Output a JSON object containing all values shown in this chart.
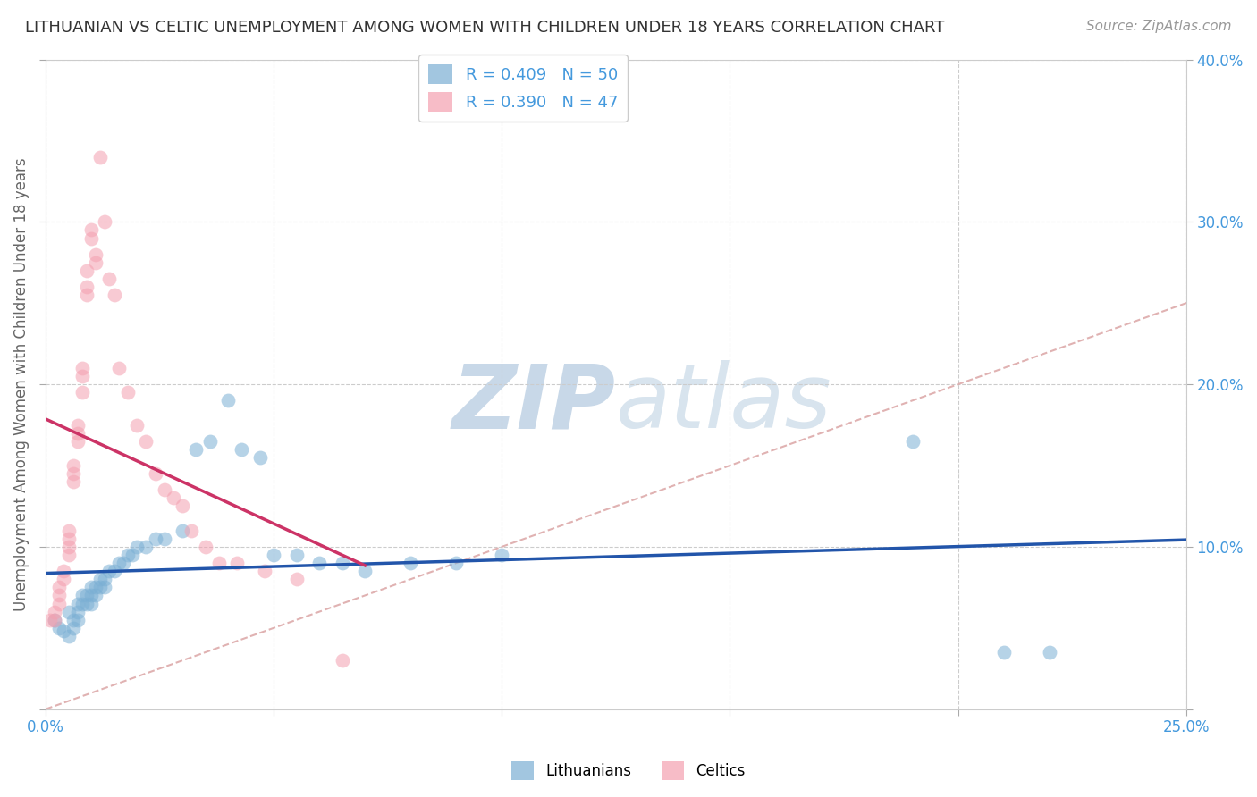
{
  "title": "LITHUANIAN VS CELTIC UNEMPLOYMENT AMONG WOMEN WITH CHILDREN UNDER 18 YEARS CORRELATION CHART",
  "source": "Source: ZipAtlas.com",
  "ylabel": "Unemployment Among Women with Children Under 18 years",
  "xlim": [
    0,
    0.25
  ],
  "ylim": [
    0,
    0.4
  ],
  "legend_blue": "R = 0.409   N = 50",
  "legend_pink": "R = 0.390   N = 47",
  "blue_color": "#7BAFD4",
  "pink_color": "#F4A0B0",
  "blue_line_color": "#2255AA",
  "pink_line_color": "#CC3366",
  "diag_color": "#DDAAAA",
  "scatter_alpha": 0.55,
  "scatter_size": 130,
  "watermark_zip": "ZIP",
  "watermark_atlas": "atlas",
  "watermark_color": "#D8E8F0",
  "blue_scatter_x": [
    0.002,
    0.003,
    0.004,
    0.005,
    0.005,
    0.006,
    0.006,
    0.007,
    0.007,
    0.007,
    0.008,
    0.008,
    0.009,
    0.009,
    0.01,
    0.01,
    0.01,
    0.011,
    0.011,
    0.012,
    0.012,
    0.013,
    0.013,
    0.014,
    0.015,
    0.016,
    0.017,
    0.018,
    0.019,
    0.02,
    0.022,
    0.024,
    0.026,
    0.03,
    0.033,
    0.036,
    0.04,
    0.043,
    0.047,
    0.05,
    0.055,
    0.06,
    0.065,
    0.07,
    0.08,
    0.09,
    0.1,
    0.19,
    0.21,
    0.22
  ],
  "blue_scatter_y": [
    0.055,
    0.05,
    0.048,
    0.045,
    0.06,
    0.055,
    0.05,
    0.065,
    0.06,
    0.055,
    0.07,
    0.065,
    0.07,
    0.065,
    0.075,
    0.07,
    0.065,
    0.075,
    0.07,
    0.08,
    0.075,
    0.08,
    0.075,
    0.085,
    0.085,
    0.09,
    0.09,
    0.095,
    0.095,
    0.1,
    0.1,
    0.105,
    0.105,
    0.11,
    0.16,
    0.165,
    0.19,
    0.16,
    0.155,
    0.095,
    0.095,
    0.09,
    0.09,
    0.085,
    0.09,
    0.09,
    0.095,
    0.165,
    0.035,
    0.035
  ],
  "pink_scatter_x": [
    0.001,
    0.002,
    0.002,
    0.003,
    0.003,
    0.003,
    0.004,
    0.004,
    0.005,
    0.005,
    0.005,
    0.005,
    0.006,
    0.006,
    0.006,
    0.007,
    0.007,
    0.007,
    0.008,
    0.008,
    0.008,
    0.009,
    0.009,
    0.009,
    0.01,
    0.01,
    0.011,
    0.011,
    0.012,
    0.013,
    0.014,
    0.015,
    0.016,
    0.018,
    0.02,
    0.022,
    0.024,
    0.026,
    0.028,
    0.03,
    0.032,
    0.035,
    0.038,
    0.042,
    0.048,
    0.055,
    0.065
  ],
  "pink_scatter_y": [
    0.055,
    0.06,
    0.055,
    0.075,
    0.07,
    0.065,
    0.085,
    0.08,
    0.11,
    0.105,
    0.1,
    0.095,
    0.15,
    0.145,
    0.14,
    0.175,
    0.17,
    0.165,
    0.21,
    0.205,
    0.195,
    0.27,
    0.26,
    0.255,
    0.295,
    0.29,
    0.28,
    0.275,
    0.34,
    0.3,
    0.265,
    0.255,
    0.21,
    0.195,
    0.175,
    0.165,
    0.145,
    0.135,
    0.13,
    0.125,
    0.11,
    0.1,
    0.09,
    0.09,
    0.085,
    0.08,
    0.03
  ],
  "blue_line_x": [
    0.0,
    0.25
  ],
  "pink_line_x": [
    0.0,
    0.07
  ]
}
